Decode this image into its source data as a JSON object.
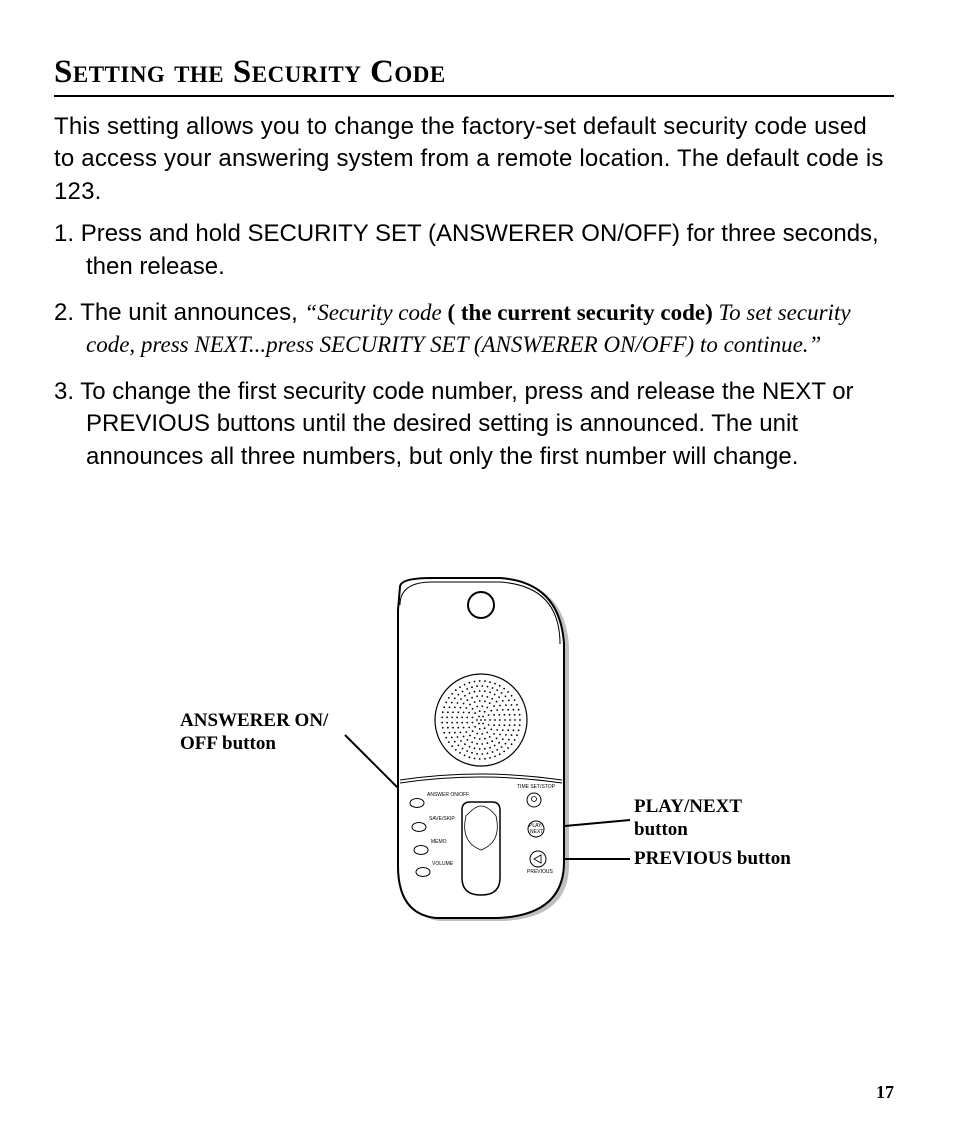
{
  "title": "Setting the Security Code",
  "intro": "This setting allows you to change the factory-set default security code used to access your answering system from a remote location. The default code is 123.",
  "steps": [
    {
      "num": "1.",
      "plain_a": "Press and hold SECURITY SET (ANSWERER ON/OFF) for three seconds, then release."
    },
    {
      "num": "2.",
      "plain_a": "The unit announces, ",
      "italic_a": "“Security code ",
      "bold_a": "( the current security code) ",
      "italic_b": "To set security code, press NEXT...press SECURITY SET (ANSWERER ON/OFF) to continue.”"
    },
    {
      "num": "3.",
      "plain_a": "To change the first security code number, press and release the NEXT or PREVIOUS buttons until the desired setting is announced. The unit announces all three numbers, but only the first number will change."
    }
  ],
  "callouts": {
    "answerer": "ANSWERER ON/\nOFF button",
    "play_next": "PLAY/NEXT\nbutton",
    "previous": "PREVIOUS  button"
  },
  "page_number": "17",
  "diagram": {
    "device_stroke": "#000000",
    "device_fill": "#ffffff",
    "label_tiny_font": 6,
    "buttons_left": [
      "ANSWER ON/OFF",
      "SAVE/SKIP",
      "MEMO",
      "VOLUME"
    ],
    "buttons_right": [
      "TIME SET/STOP",
      "PLAY/NEXT",
      "PREVIOUS"
    ]
  }
}
